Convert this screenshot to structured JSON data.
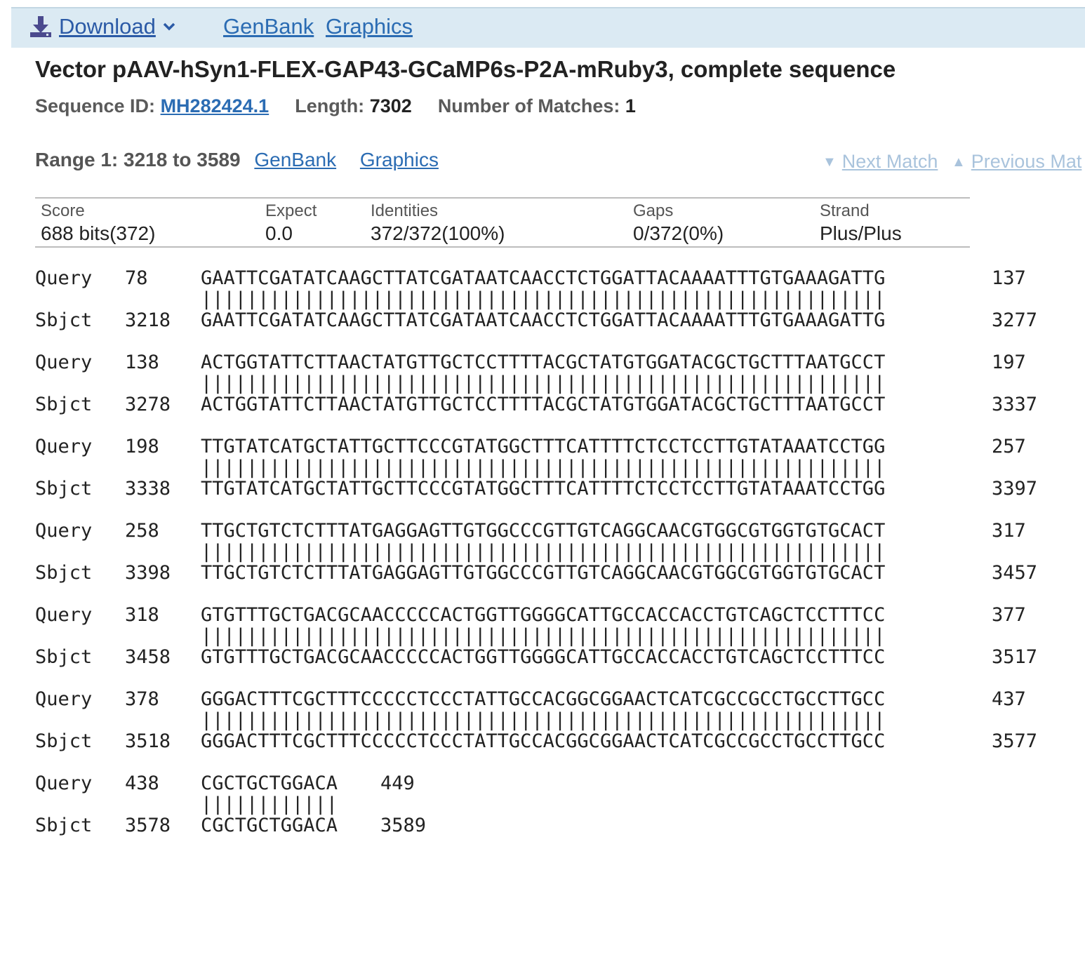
{
  "toolbar": {
    "download_label": "Download",
    "genbank_label": "GenBank",
    "graphics_label": "Graphics"
  },
  "title": "Vector pAAV-hSyn1-FLEX-GAP43-GCaMP6s-P2A-mRuby3, complete sequence",
  "meta": {
    "seqid_label": "Sequence ID:",
    "seqid_value": "MH282424.1",
    "length_label": "Length:",
    "length_value": "7302",
    "matches_label": "Number of Matches:",
    "matches_value": "1"
  },
  "range": {
    "label": "Range 1: 3218 to 3589",
    "genbank_label": "GenBank",
    "graphics_label": "Graphics",
    "next_match_label": "Next Match",
    "prev_match_label": "Previous Mat"
  },
  "stats": {
    "score_header": "Score",
    "score_value": "688 bits(372)",
    "expect_header": "Expect",
    "expect_value": "0.0",
    "identities_header": "Identities",
    "identities_value": "372/372(100%)",
    "gaps_header": "Gaps",
    "gaps_value": "0/372(0%)",
    "strand_header": "Strand",
    "strand_value": "Plus/Plus"
  },
  "alignment": {
    "query_label": "Query",
    "sbjct_label": "Sbjct",
    "blocks": [
      {
        "q_start": "78",
        "q_seq": "GAATTCGATATCAAGCTTATCGATAATCAACCTCTGGATTACAAAATTTGTGAAAGATTG",
        "q_end": "137",
        "mid": "||||||||||||||||||||||||||||||||||||||||||||||||||||||||||||",
        "s_start": "3218",
        "s_seq": "GAATTCGATATCAAGCTTATCGATAATCAACCTCTGGATTACAAAATTTGTGAAAGATTG",
        "s_end": "3277"
      },
      {
        "q_start": "138",
        "q_seq": "ACTGGTATTCTTAACTATGTTGCTCCTTTTACGCTATGTGGATACGCTGCTTTAATGCCT",
        "q_end": "197",
        "mid": "||||||||||||||||||||||||||||||||||||||||||||||||||||||||||||",
        "s_start": "3278",
        "s_seq": "ACTGGTATTCTTAACTATGTTGCTCCTTTTACGCTATGTGGATACGCTGCTTTAATGCCT",
        "s_end": "3337"
      },
      {
        "q_start": "198",
        "q_seq": "TTGTATCATGCTATTGCTTCCCGTATGGCTTTCATTTTCTCCTCCTTGTATAAATCCTGG",
        "q_end": "257",
        "mid": "||||||||||||||||||||||||||||||||||||||||||||||||||||||||||||",
        "s_start": "3338",
        "s_seq": "TTGTATCATGCTATTGCTTCCCGTATGGCTTTCATTTTCTCCTCCTTGTATAAATCCTGG",
        "s_end": "3397"
      },
      {
        "q_start": "258",
        "q_seq": "TTGCTGTCTCTTTATGAGGAGTTGTGGCCCGTTGTCAGGCAACGTGGCGTGGTGTGCACT",
        "q_end": "317",
        "mid": "||||||||||||||||||||||||||||||||||||||||||||||||||||||||||||",
        "s_start": "3398",
        "s_seq": "TTGCTGTCTCTTTATGAGGAGTTGTGGCCCGTTGTCAGGCAACGTGGCGTGGTGTGCACT",
        "s_end": "3457"
      },
      {
        "q_start": "318",
        "q_seq": "GTGTTTGCTGACGCAACCCCCACTGGTTGGGGCATTGCCACCACCTGTCAGCTCCTTTCC",
        "q_end": "377",
        "mid": "||||||||||||||||||||||||||||||||||||||||||||||||||||||||||||",
        "s_start": "3458",
        "s_seq": "GTGTTTGCTGACGCAACCCCCACTGGTTGGGGCATTGCCACCACCTGTCAGCTCCTTTCC",
        "s_end": "3517"
      },
      {
        "q_start": "378",
        "q_seq": "GGGACTTTCGCTTTCCCCCTCCCTATTGCCACGGCGGAACTCATCGCCGCCTGCCTTGCC",
        "q_end": "437",
        "mid": "||||||||||||||||||||||||||||||||||||||||||||||||||||||||||||",
        "s_start": "3518",
        "s_seq": "GGGACTTTCGCTTTCCCCCTCCCTATTGCCACGGCGGAACTCATCGCCGCCTGCCTTGCC",
        "s_end": "3577"
      },
      {
        "q_start": "438",
        "q_seq": "CGCTGCTGGACA",
        "q_end": "449",
        "mid": "||||||||||||",
        "s_start": "3578",
        "s_seq": "CGCTGCTGGACA",
        "s_end": "3589"
      }
    ]
  },
  "colors": {
    "toolbar_bg": "#dbeaf3",
    "link": "#2b6cb3",
    "disabled_link": "#a9c3dc",
    "download_icon": "#4a4a8e"
  }
}
